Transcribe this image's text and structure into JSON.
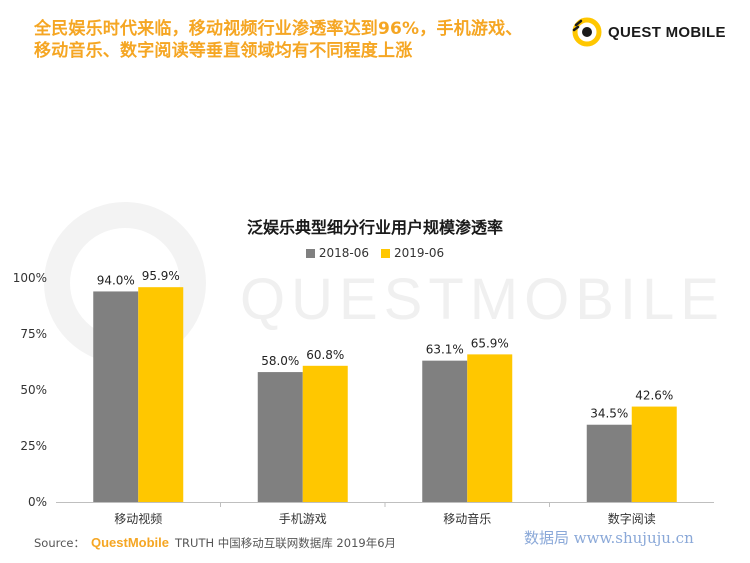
{
  "headline": {
    "line1": "全民娱乐时代来临，移动视频行业渗透率达到96%，手机游戏、",
    "line2": "移动音乐、数字阅读等垂直领域均有不同程度上涨"
  },
  "brand": {
    "name": "QUEST MOBILE"
  },
  "watermark": {
    "text": "QUESTMOBILE"
  },
  "chart_data": {
    "type": "bar",
    "title": "泛娱乐典型细分行业用户规模渗透率",
    "categories": [
      "移动视频",
      "手机游戏",
      "移动音乐",
      "数字阅读"
    ],
    "series": [
      {
        "name": "2018-06",
        "color": "#808080",
        "values": [
          94.0,
          58.0,
          63.1,
          34.5
        ],
        "labels": [
          "94.0%",
          "58.0%",
          "63.1%",
          "34.5%"
        ]
      },
      {
        "name": "2019-06",
        "color": "#FFC700",
        "values": [
          95.9,
          60.8,
          65.9,
          42.6
        ],
        "labels": [
          "95.9%",
          "60.8%",
          "65.9%",
          "42.6%"
        ]
      }
    ],
    "yticks": [
      "0%",
      "25%",
      "50%",
      "75%",
      "100%"
    ],
    "ylim": [
      0,
      100
    ],
    "grid": false,
    "legend": "top-center"
  },
  "source": {
    "label": "Source：",
    "brand": "QuestMobile",
    "text": "TRUTH 中国移动互联网数据库 2019年6月"
  },
  "site_watermark": "数据局 www.shujuju.cn"
}
